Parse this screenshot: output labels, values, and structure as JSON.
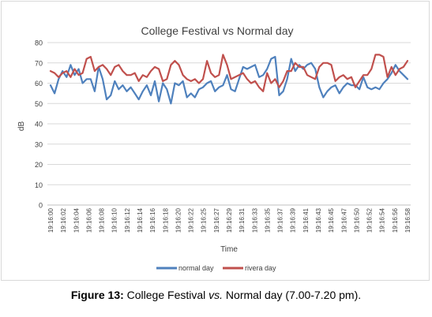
{
  "chart_data": {
    "type": "line",
    "title": "College Festival vs Normal day",
    "xlabel": "Time",
    "ylabel": "dB",
    "ylim": [
      0,
      80
    ],
    "yticks": [
      0,
      10,
      20,
      30,
      40,
      50,
      60,
      70,
      80
    ],
    "grid": true,
    "legend": "bottom",
    "x_tick_labels": [
      "19:16:00",
      "19:16:02",
      "19:16:04",
      "19:16:06",
      "19:16:08",
      "19:16:10",
      "19:16:12",
      "19:16:14",
      "19:16:16",
      "19:16:18",
      "19:16:20",
      "19:16:22",
      "19:16:25",
      "19:16:27",
      "19:16:29",
      "19:16:31",
      "19:16:33",
      "19:16:35",
      "19:16:37",
      "19:16:39",
      "19:16:41",
      "19:16:43",
      "19:16:45",
      "19:16:47",
      "19:16:50",
      "19:16:52",
      "19:16:54",
      "19:16:56",
      "19:16:58"
    ],
    "series": [
      {
        "name": "normal day",
        "color": "#4f81bd",
        "values": [
          59,
          55,
          62,
          66,
          63,
          69,
          64,
          67,
          60,
          62,
          62,
          56,
          68,
          62,
          52,
          54,
          61,
          57,
          59,
          56,
          58,
          55,
          52,
          56,
          59,
          54,
          61,
          51,
          60,
          57,
          50,
          60,
          59,
          61,
          53,
          55,
          53,
          57,
          58,
          60,
          61,
          56,
          58,
          59,
          64,
          57,
          56,
          62,
          68,
          67,
          68,
          69,
          63,
          64,
          67,
          72,
          73,
          54,
          56,
          62,
          72,
          66,
          69,
          67,
          69,
          70,
          67,
          58,
          53,
          56,
          58,
          59,
          55,
          58,
          60,
          59,
          59,
          57,
          63,
          58,
          57,
          58,
          57,
          60,
          62,
          65,
          69,
          66,
          64,
          62
        ]
      },
      {
        "name": "rivera day",
        "color": "#c0504d",
        "values": [
          66,
          65,
          63,
          65,
          66,
          63,
          67,
          64,
          65,
          72,
          73,
          66,
          68,
          69,
          67,
          64,
          68,
          69,
          66,
          64,
          64,
          65,
          61,
          64,
          63,
          66,
          68,
          67,
          61,
          62,
          69,
          71,
          69,
          64,
          62,
          61,
          62,
          60,
          62,
          71,
          65,
          63,
          64,
          74,
          69,
          62,
          63,
          64,
          65,
          62,
          60,
          61,
          58,
          56,
          65,
          60,
          62,
          58,
          61,
          66,
          66,
          70,
          68,
          68,
          64,
          63,
          62,
          68,
          70,
          70,
          69,
          61,
          63,
          64,
          62,
          63,
          58,
          61,
          64,
          64,
          67,
          74,
          74,
          73,
          63,
          68,
          64,
          67,
          68,
          71
        ]
      }
    ]
  },
  "caption": {
    "label": "Figure 13:",
    "part1": " College Festival ",
    "vs": "vs.",
    "part2": " Normal day (7.00-7.20 pm)."
  }
}
